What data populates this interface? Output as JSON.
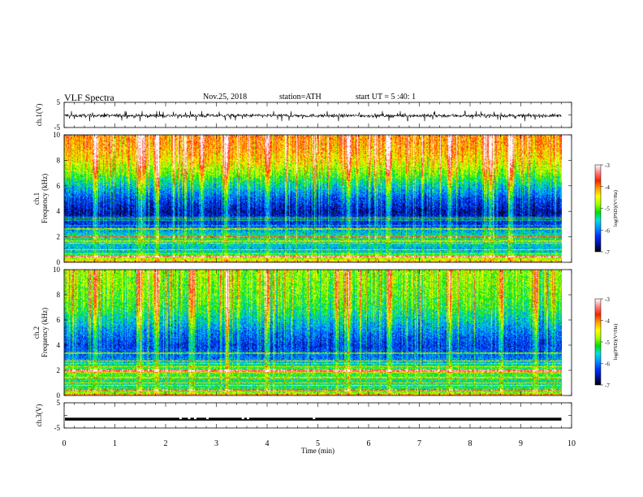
{
  "header": {
    "title": "VLF  Spectra",
    "date": "Nov.25, 2018",
    "station": "station=ATH",
    "start": "start  UT  =    5  :40: 1"
  },
  "colors": {
    "colormap": [
      "#000000",
      "#0010a0",
      "#0030ff",
      "#0090ff",
      "#00e0e0",
      "#00e000",
      "#a0ff00",
      "#ffff00",
      "#ffa000",
      "#ff2000",
      "#ff8080",
      "#ffffff"
    ],
    "line": "#000000"
  },
  "chart_data": [
    {
      "type": "line",
      "panel": "ch1-waveform",
      "ylabel": "ch.1(V)",
      "ylim": [
        -5,
        5
      ],
      "yticks": [
        "5",
        "-5"
      ],
      "xlim": [
        0,
        10
      ],
      "x_data_end": 9.8,
      "series": [
        {
          "values_description_mean": -0.3,
          "values_range": [
            -2.5,
            1.5
          ]
        }
      ]
    },
    {
      "type": "heatmap",
      "panel": "ch1-spectrogram",
      "ylabel_top": "ch.1",
      "ylabel": "Frequency (kHz)",
      "ylim": [
        0,
        10
      ],
      "yticks": [
        "0",
        "2",
        "4",
        "6",
        "8",
        "10"
      ],
      "xlim": [
        0,
        10
      ],
      "x_data_end": 9.8,
      "colorbar": {
        "label": "log(PSD)(V²/Hz)",
        "range": [
          -7,
          -3
        ],
        "ticks": [
          "-3",
          "-4",
          "-5",
          "-6",
          "-7"
        ]
      },
      "profile_freq_khz": [
        0,
        0.5,
        1,
        2,
        3,
        4,
        5,
        6,
        7,
        8,
        9,
        10
      ],
      "profile_logpsd": [
        -4.2,
        -5.0,
        -5.8,
        -5.3,
        -6.3,
        -6.6,
        -6.2,
        -5.6,
        -4.9,
        -4.4,
        -4.1,
        -4.0
      ],
      "bursts_min": [
        0.6,
        1.5,
        1.8,
        2.7,
        3.2,
        4.0,
        5.6,
        6.4,
        7.6,
        8.4,
        8.8
      ]
    },
    {
      "type": "heatmap",
      "panel": "ch2-spectrogram",
      "ylabel_top": "ch.2",
      "ylabel": "Frequency (kHz)",
      "ylim": [
        0,
        10
      ],
      "yticks": [
        "0",
        "2",
        "4",
        "6",
        "8",
        "10"
      ],
      "xlim": [
        0,
        10
      ],
      "x_data_end": 9.8,
      "colorbar": {
        "label": "log(PSD)(V²/Hz)",
        "range": [
          -7,
          -3
        ],
        "ticks": [
          "-3",
          "-4",
          "-5",
          "-6",
          "-7"
        ]
      },
      "profile_freq_khz": [
        0,
        0.5,
        1,
        2,
        3,
        4,
        5,
        6,
        7,
        8,
        9,
        10
      ],
      "profile_logpsd": [
        -4.5,
        -5.2,
        -5.5,
        -5.0,
        -6.0,
        -6.3,
        -6.0,
        -5.6,
        -5.2,
        -5.0,
        -4.9,
        -4.8
      ],
      "bursts_min": [
        0.6,
        1.5,
        1.8,
        2.5,
        3.2,
        4.0,
        5.6,
        6.4,
        7.6,
        8.6,
        9.3
      ]
    },
    {
      "type": "line",
      "panel": "ch3-waveform",
      "ylabel": "ch.3(V)",
      "ylim": [
        -5,
        5
      ],
      "yticks": [
        "5",
        "-5"
      ],
      "xlim": [
        0,
        10
      ],
      "xlabel": "Time  (min)",
      "xticks": [
        "0",
        "1",
        "2",
        "3",
        "4",
        "5",
        "6",
        "7",
        "8",
        "9",
        "10"
      ],
      "x_data_end": 9.8,
      "series": [
        {
          "level": -1.5
        }
      ],
      "gaps_min": [
        2.27,
        2.44,
        2.56,
        2.8,
        3.5,
        3.6,
        4.9
      ]
    }
  ]
}
